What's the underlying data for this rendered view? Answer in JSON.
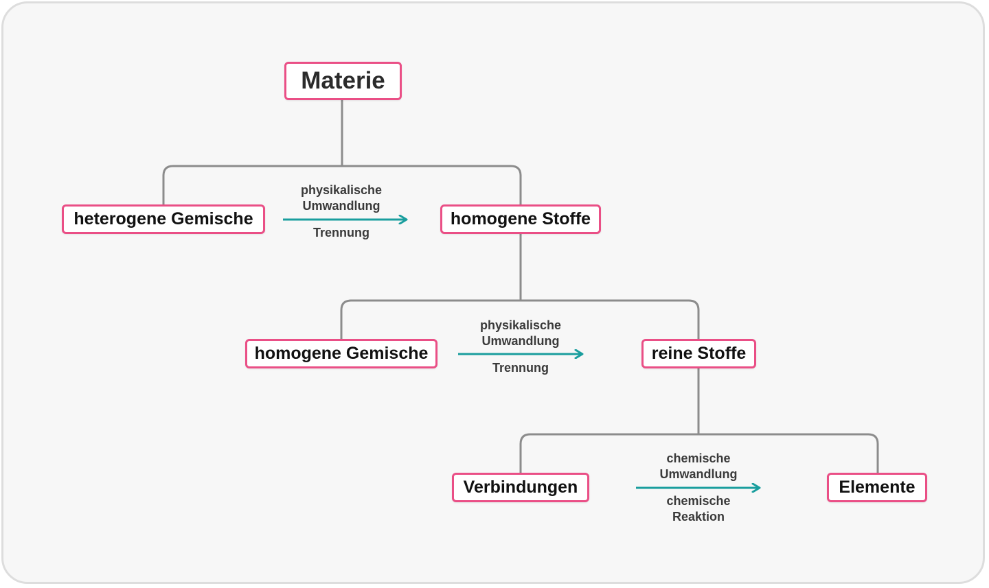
{
  "colors": {
    "node_border": "#ea4f86",
    "connector": "#8c8c8c",
    "arrow": "#1a9e9e",
    "frame_border": "#dddddd",
    "background": "#f7f7f7"
  },
  "nodes": {
    "materie": "Materie",
    "heterogene_gemische": "heterogene Gemische",
    "homogene_stoffe": "homogene Stoffe",
    "homogene_gemische": "homogene Gemische",
    "reine_stoffe": "reine Stoffe",
    "verbindungen": "Verbindungen",
    "elemente": "Elemente"
  },
  "arrows": [
    {
      "top": "physikalische\nUmwandlung",
      "bottom": "Trennung"
    },
    {
      "top": "physikalische\nUmwandlung",
      "bottom": "Trennung"
    },
    {
      "top": "chemische\nUmwandlung",
      "bottom": "chemische\nReaktion"
    }
  ]
}
